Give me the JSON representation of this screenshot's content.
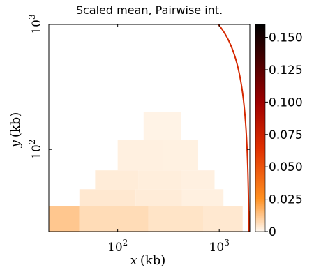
{
  "chart_data": {
    "type": "heatmap",
    "title": "Scaled mean, Pairwise int.",
    "xlabel": {
      "var": "x",
      "unit": "(kb)"
    },
    "ylabel": {
      "var": "y",
      "unit": "(kb)"
    },
    "x_scale": "log",
    "y_scale": "log",
    "xlim": [
      21,
      2000
    ],
    "ylim": [
      22,
      1000
    ],
    "x_ticks": [
      {
        "value": 100,
        "base": "10",
        "exp": "2"
      },
      {
        "value": 1000,
        "base": "10",
        "exp": "3"
      }
    ],
    "y_ticks": [
      {
        "value": 100,
        "base": "10",
        "exp": "2"
      },
      {
        "value": 1000,
        "base": "10",
        "exp": "3"
      }
    ],
    "colorbar": {
      "min": 0,
      "max": 0.16,
      "ticks": [
        "0",
        "0.025",
        "0.050",
        "0.075",
        "0.100",
        "0.125",
        "0.150"
      ],
      "tick_values": [
        0,
        0.025,
        0.05,
        0.075,
        0.1,
        0.125,
        0.15
      ],
      "colors": [
        "#fff8f0",
        "#ff9020",
        "#e03000",
        "#a00000",
        "#4a0000",
        "#000000"
      ]
    },
    "cells": [
      {
        "x0": 21,
        "x1": 42,
        "y0": 22,
        "y1": 35,
        "value": 0.012
      },
      {
        "x0": 42,
        "x1": 200,
        "y0": 22,
        "y1": 35,
        "value": 0.007
      },
      {
        "x0": 200,
        "x1": 700,
        "y0": 22,
        "y1": 35,
        "value": 0.005
      },
      {
        "x0": 700,
        "x1": 1700,
        "y0": 22,
        "y1": 35,
        "value": 0.004
      },
      {
        "x0": 42,
        "x1": 150,
        "y0": 35,
        "y1": 48,
        "value": 0.004
      },
      {
        "x0": 150,
        "x1": 430,
        "y0": 35,
        "y1": 48,
        "value": 0.003
      },
      {
        "x0": 430,
        "x1": 1100,
        "y0": 35,
        "y1": 48,
        "value": 0.002
      },
      {
        "x0": 60,
        "x1": 160,
        "y0": 48,
        "y1": 68,
        "value": 0.003
      },
      {
        "x0": 160,
        "x1": 420,
        "y0": 48,
        "y1": 68,
        "value": 0.0025
      },
      {
        "x0": 420,
        "x1": 900,
        "y0": 48,
        "y1": 68,
        "value": 0.002
      },
      {
        "x0": 100,
        "x1": 280,
        "y0": 68,
        "y1": 120,
        "value": 0.002
      },
      {
        "x0": 280,
        "x1": 620,
        "y0": 68,
        "y1": 120,
        "value": 0.0018
      },
      {
        "x0": 180,
        "x1": 420,
        "y0": 120,
        "y1": 200,
        "value": 0.0012
      }
    ],
    "boundary_curve": {
      "description": "x + y = L",
      "L": 1980,
      "value": 0.07
    },
    "right_edge_band": {
      "x0": 1930,
      "x1": 1990,
      "y0": 22,
      "y1": 32,
      "value": 0.03
    }
  }
}
